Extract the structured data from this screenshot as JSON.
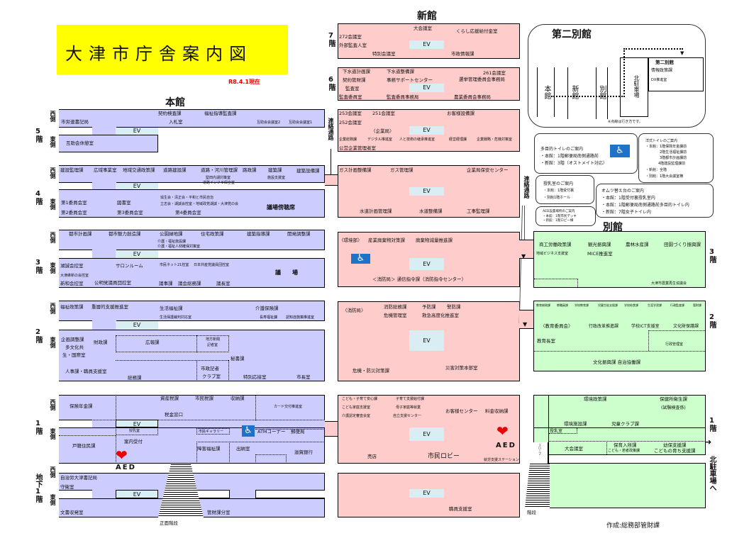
{
  "title": "大津市庁舎案内図",
  "as_of": "R8.4.1現在",
  "buildings": {
    "honkan": "本館",
    "shinkan": "新館",
    "bekkan": "別館"
  },
  "side": {
    "west": "西側",
    "east": "東側"
  },
  "floors": {
    "f7": "7階",
    "f6": "6階",
    "f5": "5階",
    "f4": "4階",
    "f3": "3階",
    "f2": "2階",
    "f1": "1階",
    "b1": "地下1階"
  },
  "ev": "EV",
  "passage": "連絡通路",
  "aed": "AED",
  "colors": {
    "honkan": "#ccccff",
    "shinkan": "#ffcccc",
    "bekkan": "#ccffcc",
    "ev": "#d9eef3",
    "title_bg": "#ffff00",
    "accessible": "#1e73c8"
  },
  "icons": [
    "wheelchair-icon",
    "aed-heart-icon",
    "arrow-down-icon",
    "arrow-right-icon"
  ],
  "honkan": {
    "f5": [
      "市労連書記局",
      "契約検査課",
      "福祉指導監査課",
      "入札室",
      "互助会会議室2",
      "互助会会議室1",
      "互助会休憩室"
    ],
    "f4": [
      "建設監理課",
      "広域事業室",
      "地域交通政策課",
      "道路建設課",
      "道路・河川管理課",
      "路政課",
      "建築課",
      "建築設備課",
      "堅田内湖対策室",
      "道路インフラ保全室",
      "施設支援室",
      "第1委員会室",
      "図書室",
      "協生会・清正会・平和と市民自治",
      "立志会・湖誠会控室・地域政党湖誠・大津党の会",
      "議場傍聴席",
      "第2委員会室",
      "第3委員会室",
      "第4委員会室"
    ],
    "f3": [
      "都市計画課",
      "都市魅力創造課",
      "公園緑地課",
      "住宅政策課",
      "建築指導課",
      "開発調整課",
      "介護・福祉施設課",
      "介護・福祉人材確保対策室",
      "湖誠会控室",
      "サロンルーム",
      "市民ネット21控室",
      "日本共産党議員団控室",
      "大津維新の会控室",
      "議　　場",
      "新和会控室",
      "公明党議員団控室",
      "議事課",
      "議会総務課",
      "議長室"
    ],
    "f2": [
      "福祉政策課",
      "重層的支援推進室",
      "生活福祉課",
      "介護保険課",
      "生活保護裁判対応室",
      "長寿福祉課",
      "認知症施策推進室",
      "企画調整課",
      "多文化共",
      "生・国際室",
      "財政課",
      "広報課",
      "地方新聞",
      "記者室",
      "秘書課",
      "人事課・職員支援室",
      "総務課",
      "市政記者",
      "クラブ室",
      "特別応接室",
      "市長室"
    ],
    "f1": [
      "保険年金課",
      "資産税課",
      "市民税課",
      "収納課",
      "カード交付推進室",
      "税金窓口",
      "授乳室",
      "案内受付",
      "戸籍住民課",
      "市民ギャラリー",
      "ATMコーナー",
      "郵便局",
      "障害福祉課",
      "出納室",
      "滋賀銀行"
    ],
    "b1": [
      "自治労大津書記局",
      "守衛室",
      "文書収発室",
      "管財課分室",
      "正面階段"
    ]
  },
  "shinkan": {
    "f7": [
      "大会議室",
      "くらし応援給付金室",
      "272会議室",
      "外部監査人室",
      "特別会議室",
      "市政情報課"
    ],
    "f6": [
      "下水道計画課",
      "下水道整備課",
      "261会議室",
      "契約管財課",
      "事務サポートセンター",
      "選挙管理委員会事務局",
      "監査室",
      "監査委員室",
      "監査委員事務局",
      "農業委員会事務局"
    ],
    "f5": [
      "253会議室",
      "251会議室",
      "お客様設備課",
      "252会議室",
      "〈企業局〉",
      "企業総務課",
      "デジタル推進室",
      "人と技術の継承推進室",
      "経営経理課",
      "企業戦略・危機対策室",
      "公営企業管理者室"
    ],
    "f4": [
      "ガス計画整備課",
      "ガス管理課",
      "企業局保安センター",
      "水道計画管理課",
      "水道整備課",
      "工事監理課"
    ],
    "f3": [
      "〈環境部〉",
      "産業廃棄物対策課",
      "廃棄物減量推進課",
      "＜消防局＞ 通信指令課（消防指令センター）"
    ],
    "f2": [
      "〈消防局〉",
      "消防総務課",
      "予防課",
      "警防課",
      "危機管理室",
      "救急高度化推進室",
      "危機・防災対策課",
      "災害対策本部室"
    ],
    "f1": [
      "こども・子育て安心課",
      "子育て支援給付課",
      "こども家庭支援室",
      "母子家庭等就業",
      "介護認定審査会室",
      "自立支援センター",
      "お客様センター",
      "料金収納課",
      "売店",
      "市民ロビー",
      "就労支援ステーション"
    ],
    "b1": [
      "職員支援室"
    ]
  },
  "bekkan": {
    "f3": [
      "商工労働政策課",
      "観光振興課",
      "農林水産課",
      "田園づくり振興課",
      "地域ビジネス支援室",
      "MICE推進室",
      "大津市農業再生協議会"
    ],
    "f2": [
      "教育総務課",
      "教職員課",
      "学校教育課",
      "児童生徒支援課",
      "学校給食課",
      "生涯学習課",
      "行政監査課",
      "管財課",
      "〈教育委員会〉",
      "行政改革推進課",
      "学校ICT支援室",
      "文化財保護課",
      "教育長室",
      "行政管理室",
      "文化振興課 自治協働課"
    ],
    "f1": [
      "環境政策課",
      "保健所衛生課",
      "(試験検査係)",
      "環境施設課",
      "児童クラブ課",
      "授乳室",
      "大会議室",
      "保育入所課",
      "幼保支援課",
      "こども・若者政策課",
      "こどもの育ち支援課",
      "スロープ",
      "階段",
      "北駐車場へ"
    ]
  },
  "daini": {
    "title": "第二別館",
    "honkan": "本館",
    "shinkan": "新館",
    "bekkan": "別館",
    "parking": "北駐車場",
    "annex": "第二別館",
    "rooms": [
      "情報政策課",
      "DX推進室"
    ],
    "note": "※点線は行き方です。"
  },
  "info": {
    "multi_toilet": {
      "title": "多目的トイレのご案内",
      "lines": [
        "・本館：1階郵便局南側通路前",
        "・新館：3階（オストメイト対応）"
      ]
    },
    "western_toilet": {
      "title": "洋式トイレのご案内",
      "lines": [
        "・本館：1階保険年金課前",
        "2階生活福祉課前",
        "3階都市計画課前",
        "4階建設監理課前",
        "・新館：全階",
        "・別館：1階大会議室横"
      ]
    },
    "nursing": {
      "title": "授乳室のご案内",
      "lines": [
        "・本館：1階受付裏",
        "・別館1階ホール"
      ]
    },
    "diaper": {
      "title": "オムツ替え台のご案内",
      "lines": [
        "・本館：1階受付裏授乳室内",
        "・本館：1階郵便局南側通路前多目的トイレ内",
        "・新館：7階女子トイレ内"
      ]
    },
    "aed": {
      "title": "AED設置場所のご案内",
      "lines": [
        "・本館：1階市民デッキ",
        "・新館：1階ロビー横"
      ]
    }
  },
  "credit": "作成:総務部管財課"
}
